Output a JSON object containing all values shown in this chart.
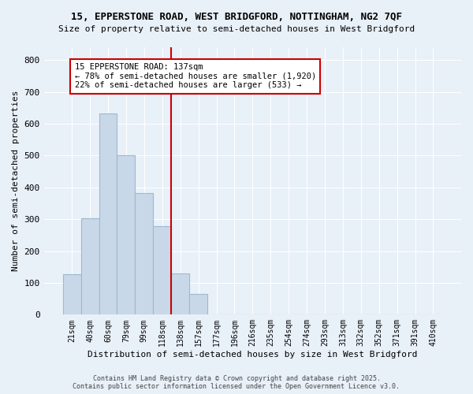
{
  "title_line1": "15, EPPERSTONE ROAD, WEST BRIDGFORD, NOTTINGHAM, NG2 7QF",
  "title_line2": "Size of property relative to semi-detached houses in West Bridgford",
  "xlabel": "Distribution of semi-detached houses by size in West Bridgford",
  "ylabel": "Number of semi-detached properties",
  "bin_labels": [
    "21sqm",
    "40sqm",
    "60sqm",
    "79sqm",
    "99sqm",
    "118sqm",
    "138sqm",
    "157sqm",
    "177sqm",
    "196sqm",
    "216sqm",
    "235sqm",
    "254sqm",
    "274sqm",
    "293sqm",
    "313sqm",
    "332sqm",
    "352sqm",
    "371sqm",
    "391sqm",
    "410sqm"
  ],
  "bar_values": [
    128,
    302,
    632,
    500,
    383,
    278,
    130,
    65,
    0,
    0,
    0,
    0,
    0,
    0,
    0,
    0,
    0,
    0,
    0,
    0,
    0
  ],
  "bar_color": "#c8d8e8",
  "bar_edge_color": "#a0b8d0",
  "vline_pos": 5.48,
  "annotation_title": "15 EPPERSTONE ROAD: 137sqm",
  "annotation_line2": "← 78% of semi-detached houses are smaller (1,920)",
  "annotation_line3": "22% of semi-detached houses are larger (533) →",
  "annotation_box_color": "#ffffff",
  "annotation_box_edge": "#cc0000",
  "vline_color": "#cc0000",
  "ylim": [
    0,
    840
  ],
  "yticks": [
    0,
    100,
    200,
    300,
    400,
    500,
    600,
    700,
    800
  ],
  "background_color": "#e8f0f8",
  "footer_line1": "Contains HM Land Registry data © Crown copyright and database right 2025.",
  "footer_line2": "Contains public sector information licensed under the Open Government Licence v3.0."
}
